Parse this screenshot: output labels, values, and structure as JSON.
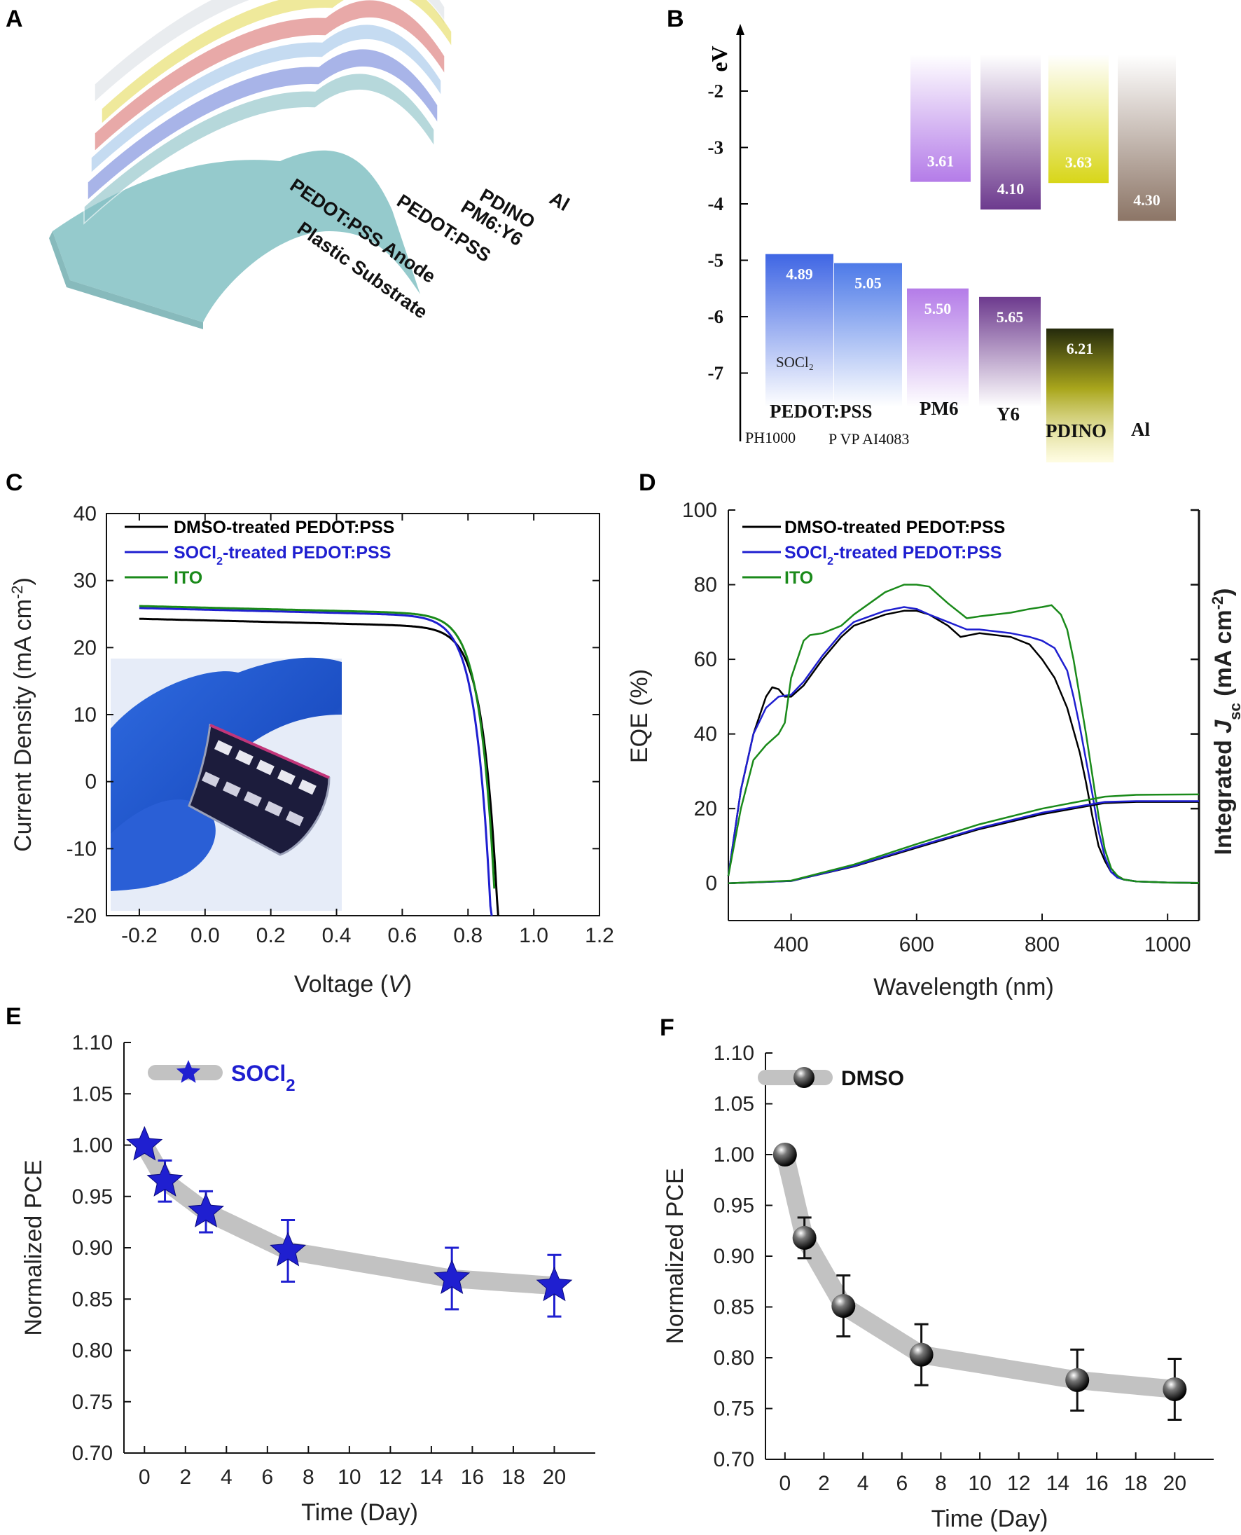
{
  "panels": {
    "A": {
      "label": "A",
      "layers": [
        "Al",
        "PDINO",
        "PM6:Y6",
        "PEDOT:PSS",
        "PEDOT:PSS Anode",
        "Plastic Substrate"
      ],
      "layer_colors": [
        "#d8dde3",
        "#e6dc5a",
        "#d9716f",
        "#9fc4e9",
        "#7083d9",
        "#86bfc4"
      ]
    },
    "B": {
      "label": "B",
      "unit": "eV",
      "ticks": [
        -2,
        -3,
        -4,
        -5,
        -6,
        -7
      ],
      "lumo": [
        {
          "material": "PM6",
          "value": 3.61,
          "label": "3.61",
          "color": "#b47ce8"
        },
        {
          "material": "Y6",
          "value": 4.1,
          "label": "4.10",
          "color": "#6d3a8e"
        },
        {
          "material": "PDINO",
          "value": 3.63,
          "label": "3.63",
          "color": "#d8d619"
        },
        {
          "material": "Al",
          "value": 4.3,
          "label": "4.30",
          "color": "#8c7566"
        }
      ],
      "homo": [
        {
          "material": "PEDOT:PSS PH1000 (SOCl2)",
          "value": 4.89,
          "label": "4.89",
          "color": "#3f66e4"
        },
        {
          "material": "PEDOT:PSS P VP AI4083",
          "value": 5.05,
          "label": "5.05",
          "color": "#4d7ae8"
        },
        {
          "material": "PM6",
          "value": 5.5,
          "label": "5.50",
          "color": "#b47ce8"
        },
        {
          "material": "Y6",
          "value": 5.65,
          "label": "5.65",
          "color": "#6d3a8e"
        },
        {
          "material": "PDINO",
          "value": 6.21,
          "label": "6.21",
          "color": "#242a0c"
        }
      ],
      "text": {
        "socl2": "SOCl₂",
        "pedot": "PEDOT:PSS",
        "pm6": "PM6",
        "y6": "Y6",
        "pdino": "PDINO",
        "al": "Al",
        "ph1000": "PH1000",
        "pvp": "P VP AI4083"
      }
    },
    "C": {
      "label": "C"
    },
    "D": {
      "label": "D"
    },
    "E": {
      "label": "E"
    },
    "F": {
      "label": "F"
    }
  },
  "chart_data": [
    {
      "id": "C",
      "type": "line",
      "xlabel": "Voltage (V)",
      "ylabel": "Current Density (mA cm-2)",
      "xlim": [
        -0.3,
        1.2
      ],
      "ylim": [
        -20,
        40
      ],
      "xticks": [
        -0.2,
        0.0,
        0.2,
        0.4,
        0.6,
        0.8,
        1.0,
        1.2
      ],
      "yticks": [
        -20,
        -10,
        0,
        10,
        20,
        30,
        40
      ],
      "inset": "photo of flexible device held by gloved fingers",
      "series": [
        {
          "name": "DMSO-treated PEDOT:PSS",
          "color": "#000000",
          "jsc": 24.3,
          "voc": 0.865,
          "x0": -0.2,
          "x1": 0.895
        },
        {
          "name": "SOCl2-treated PEDOT:PSS",
          "color": "#1f1fd0",
          "jsc": 25.9,
          "voc": 0.845,
          "x0": -0.2,
          "x1": 0.875
        },
        {
          "name": "ITO",
          "color": "#1a8a1a",
          "jsc": 26.2,
          "voc": 0.86,
          "x0": -0.2,
          "x1": 0.88
        }
      ]
    },
    {
      "id": "D",
      "type": "line",
      "xlabel": "Wavelength (nm)",
      "ylabel": "EQE (%)",
      "ylabel_right": "Integrated Jsc (mA cm-2)",
      "xlim": [
        300,
        1050
      ],
      "ylim": [
        -10,
        100
      ],
      "xticks": [
        400,
        600,
        800,
        1000
      ],
      "yticks": [
        0,
        20,
        40,
        60,
        80,
        100
      ],
      "series": [
        {
          "name": "DMSO-treated PEDOT:PSS",
          "color": "#000000",
          "x": [
            300,
            320,
            340,
            360,
            370,
            380,
            390,
            400,
            420,
            450,
            480,
            500,
            550,
            580,
            600,
            620,
            650,
            670,
            700,
            750,
            780,
            800,
            820,
            840,
            860,
            870,
            880,
            890,
            900,
            910,
            920,
            930,
            950,
            1000,
            1050
          ],
          "y": [
            2,
            25,
            40,
            50,
            52.5,
            52,
            50,
            50,
            53,
            60,
            66,
            69,
            72,
            73,
            73,
            72,
            69,
            66,
            67,
            66,
            64,
            60,
            55,
            47,
            35,
            27,
            18,
            10,
            6,
            3,
            2,
            1,
            0.5,
            0.2,
            0.1
          ]
        },
        {
          "name": "SOCl2-treated PEDOT:PSS",
          "color": "#1f1fd0",
          "x": [
            300,
            320,
            340,
            360,
            380,
            400,
            420,
            450,
            480,
            500,
            550,
            580,
            600,
            620,
            650,
            680,
            700,
            750,
            780,
            800,
            820,
            840,
            850,
            860,
            870,
            880,
            890,
            900,
            910,
            920,
            930,
            950,
            1000,
            1050
          ],
          "y": [
            2,
            25,
            40,
            47,
            50,
            50.5,
            54,
            61,
            67,
            70,
            73,
            74,
            73.5,
            72,
            70,
            68,
            68,
            67,
            66,
            65,
            63,
            57,
            50,
            42,
            33,
            24,
            14,
            7,
            3,
            1.5,
            1,
            0.5,
            0.2,
            0.1
          ]
        },
        {
          "name": "ITO",
          "color": "#1a8a1a",
          "x": [
            300,
            320,
            340,
            360,
            380,
            390,
            400,
            420,
            430,
            450,
            480,
            500,
            550,
            580,
            600,
            620,
            650,
            680,
            700,
            750,
            780,
            800,
            815,
            830,
            840,
            850,
            860,
            870,
            880,
            890,
            900,
            910,
            920,
            930,
            950,
            1000,
            1050
          ],
          "y": [
            2,
            20,
            33,
            37,
            40,
            43,
            55,
            65,
            66.5,
            67,
            69,
            72,
            78,
            80,
            80,
            79.5,
            75,
            71,
            71.5,
            72.5,
            73.5,
            74,
            74.5,
            72,
            68,
            60,
            50,
            40,
            29,
            18,
            9,
            4,
            2,
            1,
            0.5,
            0.2,
            0.1
          ]
        },
        {
          "name": "DMSO integrated Jsc",
          "color": "#000000",
          "x": [
            300,
            400,
            500,
            600,
            700,
            800,
            900,
            950,
            1050
          ],
          "y": [
            0,
            0.6,
            4.5,
            9.5,
            14.5,
            18.5,
            21.5,
            21.8,
            21.8
          ]
        },
        {
          "name": "SOCl2 integrated Jsc",
          "color": "#1f1fd0",
          "x": [
            300,
            400,
            500,
            600,
            700,
            800,
            900,
            950,
            1050
          ],
          "y": [
            0,
            0.6,
            4.6,
            9.8,
            14.8,
            18.9,
            21.8,
            22.0,
            22.0
          ]
        },
        {
          "name": "ITO integrated Jsc",
          "color": "#1a8a1a",
          "x": [
            300,
            400,
            500,
            600,
            700,
            800,
            900,
            950,
            1050
          ],
          "y": [
            0,
            0.7,
            5.0,
            10.5,
            15.8,
            20.0,
            23.2,
            23.7,
            23.8
          ]
        }
      ]
    },
    {
      "id": "E",
      "type": "scatter",
      "xlabel": "Time (Day)",
      "ylabel": "Normalized PCE",
      "xlim": [
        -1,
        22
      ],
      "ylim": [
        0.7,
        1.1
      ],
      "xticks": [
        0,
        2,
        4,
        6,
        8,
        10,
        12,
        14,
        16,
        18,
        20
      ],
      "yticks": [
        0.7,
        0.75,
        0.8,
        0.85,
        0.9,
        0.95,
        1.0,
        1.05,
        1.1
      ],
      "legend": "SOCl2",
      "marker": "star",
      "color": "#1f1fd0",
      "x": [
        0,
        1,
        3,
        7,
        15,
        20
      ],
      "y": [
        1.0,
        0.965,
        0.935,
        0.897,
        0.87,
        0.863
      ],
      "err": [
        0,
        0.02,
        0.02,
        0.03,
        0.03,
        0.03
      ]
    },
    {
      "id": "F",
      "type": "scatter",
      "xlabel": "Time (Day)",
      "ylabel": "Normalized PCE",
      "xlim": [
        -1,
        22
      ],
      "ylim": [
        0.7,
        1.1
      ],
      "xticks": [
        0,
        2,
        4,
        6,
        8,
        10,
        12,
        14,
        16,
        18,
        20
      ],
      "yticks": [
        0.7,
        0.75,
        0.8,
        0.85,
        0.9,
        0.95,
        1.0,
        1.05,
        1.1
      ],
      "legend": "DMSO",
      "marker": "sphere",
      "color": "#111111",
      "x": [
        0,
        1,
        3,
        7,
        15,
        20
      ],
      "y": [
        1.0,
        0.918,
        0.851,
        0.803,
        0.778,
        0.769
      ],
      "err": [
        0,
        0.02,
        0.03,
        0.03,
        0.03,
        0.03
      ]
    }
  ]
}
